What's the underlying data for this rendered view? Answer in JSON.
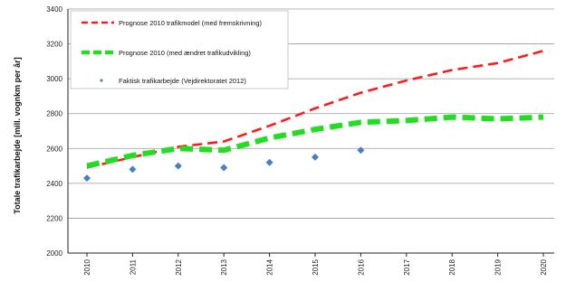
{
  "chart_data": {
    "type": "line",
    "title": "",
    "xlabel": "",
    "ylabel": "Totale trafikarbejde [mill. vognkm per år]",
    "categories": [
      "2010",
      "2011",
      "2012",
      "2013",
      "2014",
      "2015",
      "2016",
      "2017",
      "2018",
      "2019",
      "2020"
    ],
    "ylim": [
      2000,
      3400
    ],
    "yticks": [
      "2000",
      "2200",
      "2400",
      "2600",
      "2800",
      "3000",
      "3200",
      "3400"
    ],
    "grid": "y",
    "legend_position": "top-left",
    "series": [
      {
        "name": "Prognose 2010 trafikmodel (med fremskrivning)",
        "style": "dashed",
        "color": "#ff1a1a",
        "values": [
          2490,
          2550,
          2610,
          2640,
          2730,
          2830,
          2920,
          2990,
          3050,
          3090,
          3160
        ]
      },
      {
        "name": "Prognose 2010 (med ændret trafikudvikling)",
        "style": "dashed-thick",
        "color": "#22dd22",
        "values": [
          2500,
          2560,
          2600,
          2590,
          2660,
          2710,
          2750,
          2760,
          2780,
          2770,
          2780
        ]
      },
      {
        "name": "Faktisk trafikarbejde (Vejdirektoratet 2012)",
        "style": "marker",
        "color": "#4a7fc1",
        "values": [
          2430,
          2480,
          2500,
          2490,
          2520,
          2550,
          2590,
          null,
          null,
          null,
          null
        ]
      }
    ]
  }
}
